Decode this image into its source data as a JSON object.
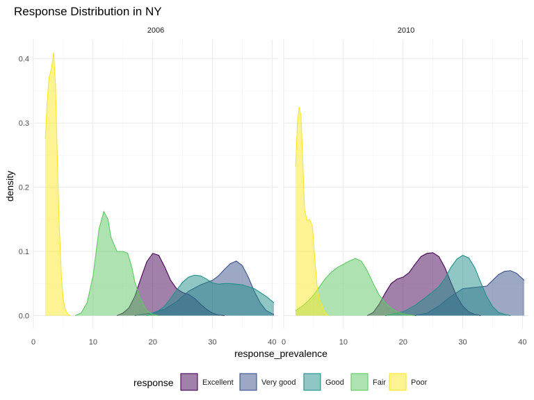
{
  "chart_data": {
    "type": "area",
    "title": "Response Distribution in NY",
    "xlabel": "response_prevalence",
    "ylabel": "density",
    "xlim": [
      0,
      41
    ],
    "ylim": [
      -0.02,
      0.43
    ],
    "x_ticks": [
      0,
      10,
      20,
      30,
      40
    ],
    "y_ticks": [
      0.0,
      0.1,
      0.2,
      0.3,
      0.4
    ],
    "y_tick_labels": [
      "0.0",
      "0.1",
      "0.2",
      "0.3",
      "0.4"
    ],
    "grid": true,
    "legend": {
      "title": "response",
      "placement": "bottom",
      "entries": [
        "Excellent",
        "Very good",
        "Good",
        "Fair",
        "Poor"
      ]
    },
    "colors": {
      "Excellent": "#440154",
      "Very good": "#3B528B",
      "Good": "#21908C",
      "Fair": "#5DC863",
      "Poor": "#FDE725"
    },
    "fill_opacity": 0.5,
    "panels": [
      {
        "label": "2006",
        "series": [
          {
            "name": "Excellent",
            "points": [
              [
                14,
                0
              ],
              [
                15,
                0.004
              ],
              [
                16,
                0.012
              ],
              [
                17,
                0.03
              ],
              [
                18,
                0.058
              ],
              [
                19,
                0.084
              ],
              [
                20,
                0.097
              ],
              [
                21,
                0.094
              ],
              [
                22,
                0.076
              ],
              [
                23,
                0.055
              ],
              [
                24,
                0.042
              ],
              [
                25,
                0.036
              ],
              [
                26,
                0.033
              ],
              [
                27,
                0.027
              ],
              [
                28,
                0.018
              ],
              [
                29,
                0.01
              ],
              [
                30,
                0.004
              ],
              [
                31,
                0.001
              ],
              [
                32,
                0
              ]
            ]
          },
          {
            "name": "Very good",
            "points": [
              [
                17,
                0
              ],
              [
                18,
                0.002
              ],
              [
                20,
                0.004
              ],
              [
                22,
                0.01
              ],
              [
                24,
                0.022
              ],
              [
                26,
                0.038
              ],
              [
                28,
                0.048
              ],
              [
                30,
                0.055
              ],
              [
                31,
                0.062
              ],
              [
                32,
                0.072
              ],
              [
                33,
                0.081
              ],
              [
                34,
                0.085
              ],
              [
                35,
                0.078
              ],
              [
                36,
                0.06
              ],
              [
                37,
                0.038
              ],
              [
                38,
                0.02
              ],
              [
                39,
                0.008
              ],
              [
                40,
                0.003
              ],
              [
                40.3,
                0.002
              ]
            ]
          },
          {
            "name": "Good",
            "points": [
              [
                19,
                0
              ],
              [
                20,
                0.004
              ],
              [
                21,
                0.008
              ],
              [
                22,
                0.015
              ],
              [
                23,
                0.027
              ],
              [
                24,
                0.04
              ],
              [
                25,
                0.052
              ],
              [
                26,
                0.06
              ],
              [
                27,
                0.063
              ],
              [
                28,
                0.062
              ],
              [
                29,
                0.057
              ],
              [
                30,
                0.051
              ],
              [
                31,
                0.049
              ],
              [
                32,
                0.05
              ],
              [
                33,
                0.05
              ],
              [
                34,
                0.049
              ],
              [
                35,
                0.048
              ],
              [
                36,
                0.045
              ],
              [
                37,
                0.042
              ],
              [
                38,
                0.036
              ],
              [
                39,
                0.03
              ],
              [
                40.3,
                0.02
              ]
            ]
          },
          {
            "name": "Fair",
            "points": [
              [
                7,
                0
              ],
              [
                8,
                0.004
              ],
              [
                9,
                0.02
              ],
              [
                10,
                0.062
              ],
              [
                11,
                0.135
              ],
              [
                11.8,
                0.162
              ],
              [
                12.5,
                0.15
              ],
              [
                13,
                0.122
              ],
              [
                14,
                0.1
              ],
              [
                15,
                0.1
              ],
              [
                15.8,
                0.097
              ],
              [
                16.5,
                0.075
              ],
              [
                17,
                0.052
              ],
              [
                18,
                0.025
              ],
              [
                19,
                0.008
              ],
              [
                20,
                0.002
              ],
              [
                21,
                0
              ]
            ]
          },
          {
            "name": "Poor",
            "points": [
              [
                2,
                0.275
              ],
              [
                2.3,
                0.33
              ],
              [
                2.6,
                0.37
              ],
              [
                2.9,
                0.38
              ],
              [
                3.1,
                0.39
              ],
              [
                3.4,
                0.41
              ],
              [
                3.7,
                0.36
              ],
              [
                4,
                0.25
              ],
              [
                4.3,
                0.15
              ],
              [
                4.7,
                0.06
              ],
              [
                5,
                0.025
              ],
              [
                5.4,
                0.008
              ],
              [
                5.8,
                0.002
              ],
              [
                6.2,
                0
              ]
            ]
          }
        ]
      },
      {
        "label": "2010",
        "series": [
          {
            "name": "Excellent",
            "points": [
              [
                14,
                0
              ],
              [
                15,
                0.005
              ],
              [
                16,
                0.018
              ],
              [
                17,
                0.035
              ],
              [
                18,
                0.05
              ],
              [
                19,
                0.057
              ],
              [
                20,
                0.06
              ],
              [
                21,
                0.067
              ],
              [
                22,
                0.08
              ],
              [
                23,
                0.092
              ],
              [
                24,
                0.097
              ],
              [
                25,
                0.098
              ],
              [
                26,
                0.092
              ],
              [
                27,
                0.075
              ],
              [
                28,
                0.052
              ],
              [
                29,
                0.03
              ],
              [
                30,
                0.015
              ],
              [
                31,
                0.006
              ],
              [
                32,
                0.002
              ],
              [
                33,
                0
              ]
            ]
          },
          {
            "name": "Very good",
            "points": [
              [
                22,
                0
              ],
              [
                24,
                0.004
              ],
              [
                26,
                0.015
              ],
              [
                28,
                0.03
              ],
              [
                30,
                0.042
              ],
              [
                32,
                0.044
              ],
              [
                34,
                0.046
              ],
              [
                35,
                0.055
              ],
              [
                36,
                0.064
              ],
              [
                37,
                0.069
              ],
              [
                38,
                0.07
              ],
              [
                39,
                0.066
              ],
              [
                40.3,
                0.055
              ]
            ]
          },
          {
            "name": "Good",
            "points": [
              [
                17,
                0
              ],
              [
                18,
                0.002
              ],
              [
                20,
                0.006
              ],
              [
                22,
                0.016
              ],
              [
                24,
                0.03
              ],
              [
                26,
                0.045
              ],
              [
                27,
                0.058
              ],
              [
                28,
                0.075
              ],
              [
                29,
                0.088
              ],
              [
                30,
                0.094
              ],
              [
                31,
                0.09
              ],
              [
                32,
                0.075
              ],
              [
                33,
                0.052
              ],
              [
                34,
                0.03
              ],
              [
                35,
                0.014
              ],
              [
                36,
                0.005
              ],
              [
                37,
                0.002
              ],
              [
                38,
                0
              ]
            ]
          },
          {
            "name": "Fair",
            "points": [
              [
                2,
                0.008
              ],
              [
                3,
                0.014
              ],
              [
                4,
                0.022
              ],
              [
                5,
                0.032
              ],
              [
                6,
                0.045
              ],
              [
                7,
                0.058
              ],
              [
                8,
                0.068
              ],
              [
                9,
                0.075
              ],
              [
                10,
                0.08
              ],
              [
                11,
                0.085
              ],
              [
                12,
                0.089
              ],
              [
                13,
                0.085
              ],
              [
                14,
                0.07
              ],
              [
                15,
                0.05
              ],
              [
                16,
                0.032
              ],
              [
                17,
                0.02
              ],
              [
                18,
                0.012
              ],
              [
                19,
                0.006
              ],
              [
                20,
                0.003
              ],
              [
                21,
                0.001
              ],
              [
                22,
                0
              ]
            ]
          },
          {
            "name": "Poor",
            "points": [
              [
                2,
                0.232
              ],
              [
                2.3,
                0.3
              ],
              [
                2.6,
                0.325
              ],
              [
                2.9,
                0.31
              ],
              [
                3.2,
                0.24
              ],
              [
                3.5,
                0.165
              ],
              [
                3.9,
                0.148
              ],
              [
                4.3,
                0.15
              ],
              [
                4.8,
                0.14
              ],
              [
                5.2,
                0.09
              ],
              [
                5.6,
                0.045
              ],
              [
                6,
                0.025
              ],
              [
                6.6,
                0.012
              ],
              [
                7,
                0.004
              ],
              [
                7.5,
                0
              ]
            ]
          }
        ]
      }
    ]
  }
}
